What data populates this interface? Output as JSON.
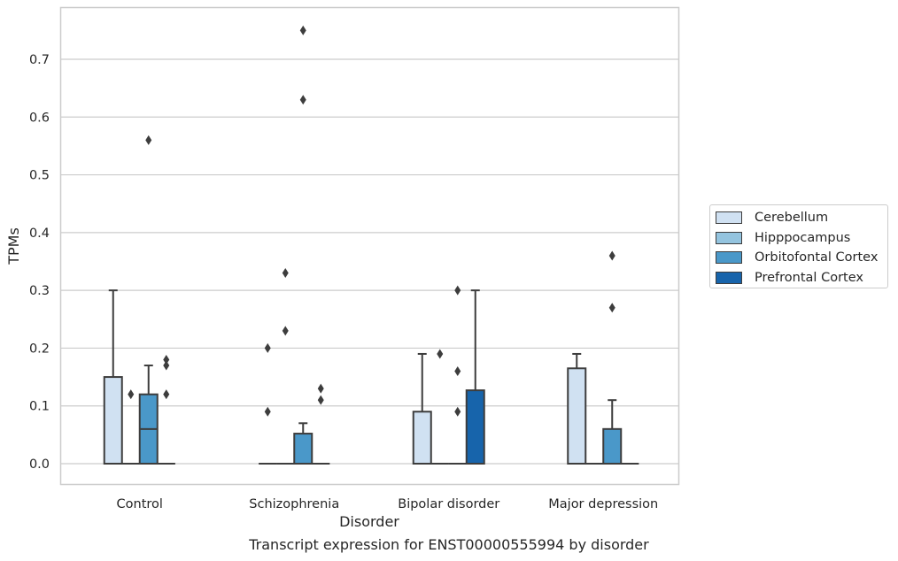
{
  "chart_data": {
    "type": "box",
    "title": "",
    "xlabel": "Disorder",
    "ylabel": "TPMs",
    "caption": "Transcript expression for ENST00000555994 by disorder",
    "categories": [
      "Control",
      "Schizophrenia",
      "Bipolar disorder",
      "Major depression"
    ],
    "yticks": [
      "0.0",
      "0.1",
      "0.2",
      "0.3",
      "0.4",
      "0.5",
      "0.6",
      "0.7"
    ],
    "ylim": [
      -0.037,
      0.79
    ],
    "grid": true,
    "legend_position": "right",
    "series": [
      {
        "name": "Cerebellum",
        "color": "#d0e1f2",
        "boxes": [
          {
            "min": 0,
            "q1": 0,
            "median": 0,
            "q3": 0.15,
            "max": 0.3,
            "outliers": []
          },
          {
            "min": 0,
            "q1": 0,
            "median": 0,
            "q3": 0,
            "max": 0,
            "outliers": [
              0.09,
              0.2
            ]
          },
          {
            "min": 0,
            "q1": 0,
            "median": 0,
            "q3": 0.09,
            "max": 0.19,
            "outliers": []
          },
          {
            "min": 0,
            "q1": 0,
            "median": 0,
            "q3": 0.165,
            "max": 0.19,
            "outliers": []
          }
        ]
      },
      {
        "name": "Hipppocampus",
        "color": "#94c4df",
        "boxes": [
          {
            "min": 0,
            "q1": 0,
            "median": 0,
            "q3": 0,
            "max": 0,
            "outliers": [
              0.12
            ]
          },
          {
            "min": 0,
            "q1": 0,
            "median": 0,
            "q3": 0,
            "max": 0,
            "outliers": [
              0.23,
              0.33
            ]
          },
          {
            "min": 0,
            "q1": 0,
            "median": 0,
            "q3": 0,
            "max": 0,
            "outliers": [
              0.19
            ]
          },
          {
            "min": 0,
            "q1": 0,
            "median": 0,
            "q3": 0,
            "max": 0,
            "outliers": []
          }
        ]
      },
      {
        "name": "Orbitofontal Cortex",
        "color": "#4a98c9",
        "boxes": [
          {
            "min": 0,
            "q1": 0,
            "median": 0.06,
            "q3": 0.12,
            "max": 0.17,
            "outliers": [
              0.56
            ]
          },
          {
            "min": 0,
            "q1": 0,
            "median": 0,
            "q3": 0.052,
            "max": 0.07,
            "outliers": [
              0.63,
              0.75
            ]
          },
          {
            "min": 0,
            "q1": 0,
            "median": 0,
            "q3": 0,
            "max": 0,
            "outliers": [
              0.09,
              0.16,
              0.3
            ]
          },
          {
            "min": 0,
            "q1": 0,
            "median": 0,
            "q3": 0.06,
            "max": 0.11,
            "outliers": [
              0.27,
              0.36
            ]
          }
        ]
      },
      {
        "name": "Prefrontal Cortex",
        "color": "#1764ab",
        "boxes": [
          {
            "min": 0,
            "q1": 0,
            "median": 0,
            "q3": 0,
            "max": 0,
            "outliers": [
              0.12,
              0.17,
              0.18
            ]
          },
          {
            "min": 0,
            "q1": 0,
            "median": 0,
            "q3": 0,
            "max": 0,
            "outliers": [
              0.11,
              0.13
            ]
          },
          {
            "min": 0,
            "q1": 0,
            "median": 0,
            "q3": 0.127,
            "max": 0.3,
            "outliers": []
          },
          {
            "min": 0,
            "q1": 0,
            "median": 0,
            "q3": 0,
            "max": 0,
            "outliers": []
          }
        ]
      }
    ]
  }
}
